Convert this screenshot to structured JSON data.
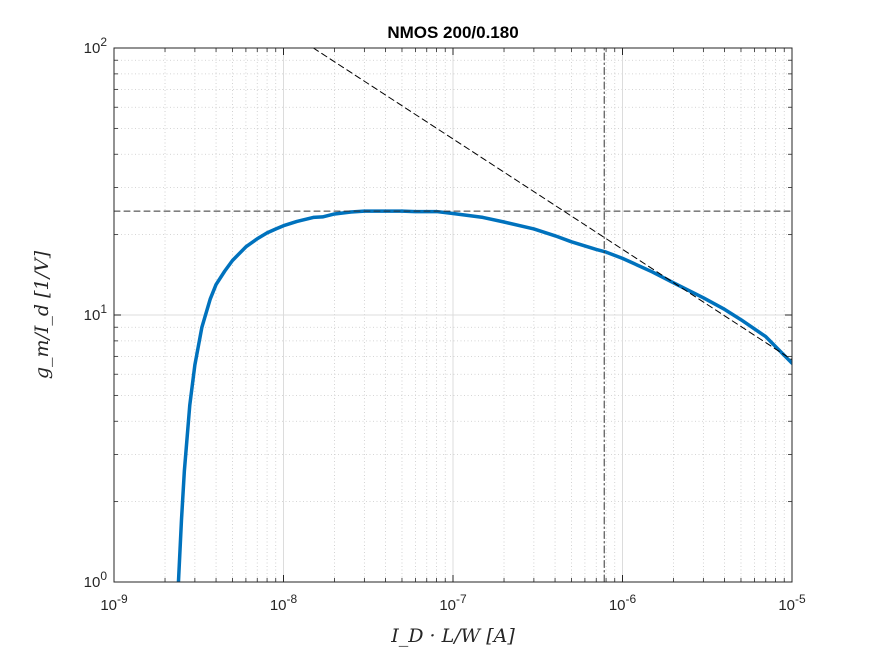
{
  "chart_data": {
    "type": "line",
    "title": "NMOS 200/0.180",
    "xlabel": "I_D · L/W [A]",
    "ylabel": "g_m/I_d [1/V]",
    "x_scale": "log",
    "y_scale": "log",
    "xlim": [
      1e-09,
      1e-05
    ],
    "ylim": [
      1,
      100
    ],
    "grid": true,
    "minor_grid": true,
    "x_tick_labels": [
      {
        "base": "10",
        "exp": "-9"
      },
      {
        "base": "10",
        "exp": "-8"
      },
      {
        "base": "10",
        "exp": "-7"
      },
      {
        "base": "10",
        "exp": "-6"
      },
      {
        "base": "10",
        "exp": "-5"
      }
    ],
    "y_tick_labels": [
      {
        "base": "10",
        "exp": "0"
      },
      {
        "base": "10",
        "exp": "1"
      },
      {
        "base": "10",
        "exp": "2"
      }
    ],
    "series": [
      {
        "color": "#0072bd",
        "style": "solid",
        "x": [
          2.4e-09,
          2.5e-09,
          2.6e-09,
          2.8e-09,
          3e-09,
          3.3e-09,
          3.7e-09,
          4e-09,
          4.5e-09,
          5e-09,
          6e-09,
          7e-09,
          8e-09,
          9e-09,
          1e-08,
          1.2e-08,
          1.5e-08,
          1.7e-08,
          2e-08,
          2.5e-08,
          3e-08,
          4e-08,
          5e-08,
          6e-08,
          8e-08,
          1e-07,
          1.5e-07,
          2e-07,
          3e-07,
          4e-07,
          5e-07,
          7e-07,
          8e-07,
          1e-06,
          1.5e-06,
          2e-06,
          3e-06,
          4e-06,
          5e-06,
          7e-06,
          1e-05
        ],
        "y": [
          1.0,
          1.7,
          2.6,
          4.6,
          6.5,
          9.0,
          11.5,
          13.0,
          14.6,
          16.0,
          18.0,
          19.3,
          20.3,
          21.0,
          21.6,
          22.4,
          23.2,
          23.3,
          23.9,
          24.3,
          24.5,
          24.5,
          24.5,
          24.4,
          24.4,
          24.0,
          23.2,
          22.3,
          21.0,
          19.8,
          18.8,
          17.6,
          17.2,
          16.3,
          14.5,
          13.2,
          11.6,
          10.5,
          9.6,
          8.3,
          6.6
        ]
      },
      {
        "color": "#000000",
        "style": "dashed",
        "x": [
          1.5e-08,
          1e-05
        ],
        "y": [
          100,
          6.8
        ]
      },
      {
        "color": "#333333",
        "style": "dashed",
        "x": [
          1e-09,
          1e-05
        ],
        "y": [
          24.5,
          24.5
        ]
      },
      {
        "color": "#333333",
        "style": "dashdot",
        "x": [
          7.8e-07,
          7.8e-07
        ],
        "y": [
          1,
          100
        ]
      }
    ]
  }
}
